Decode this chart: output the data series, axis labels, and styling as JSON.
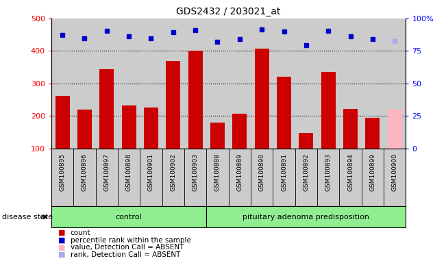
{
  "title": "GDS2432 / 203021_at",
  "samples": [
    "GSM100895",
    "GSM100896",
    "GSM100897",
    "GSM100898",
    "GSM100901",
    "GSM100902",
    "GSM100903",
    "GSM100888",
    "GSM100889",
    "GSM100890",
    "GSM100891",
    "GSM100892",
    "GSM100893",
    "GSM100894",
    "GSM100899",
    "GSM100900"
  ],
  "bar_values": [
    263,
    220,
    345,
    233,
    226,
    370,
    400,
    180,
    207,
    408,
    320,
    148,
    335,
    221,
    195,
    220
  ],
  "bar_colors": [
    "#cc0000",
    "#cc0000",
    "#cc0000",
    "#cc0000",
    "#cc0000",
    "#cc0000",
    "#cc0000",
    "#cc0000",
    "#cc0000",
    "#cc0000",
    "#cc0000",
    "#cc0000",
    "#cc0000",
    "#cc0000",
    "#cc0000",
    "#ffb6c1"
  ],
  "rank_values": [
    450,
    438,
    462,
    444,
    439,
    458,
    464,
    428,
    437,
    466,
    460,
    418,
    462,
    445,
    437,
    430
  ],
  "rank_colors": [
    "#0000cc",
    "#0000cc",
    "#0000cc",
    "#0000cc",
    "#0000cc",
    "#0000cc",
    "#0000cc",
    "#0000cc",
    "#0000cc",
    "#0000cc",
    "#0000cc",
    "#0000cc",
    "#0000cc",
    "#0000cc",
    "#0000cc",
    "#aaaaee"
  ],
  "n_control": 7,
  "ylim_left": [
    100,
    500
  ],
  "yticks_left": [
    100,
    200,
    300,
    400,
    500
  ],
  "yticks_right_vals": [
    0,
    25,
    50,
    75,
    100
  ],
  "yright_labels": [
    "0",
    "25",
    "50",
    "75",
    "100%"
  ],
  "grid_values": [
    200,
    300,
    400
  ],
  "plot_bg": "#cccccc",
  "tick_label_bg": "#cccccc",
  "group_color": "#90ee90",
  "legend": [
    {
      "color": "#cc0000",
      "label": "count"
    },
    {
      "color": "#0000cc",
      "label": "percentile rank within the sample"
    },
    {
      "color": "#ffb6c1",
      "label": "value, Detection Call = ABSENT"
    },
    {
      "color": "#aaaaee",
      "label": "rank, Detection Call = ABSENT"
    }
  ]
}
